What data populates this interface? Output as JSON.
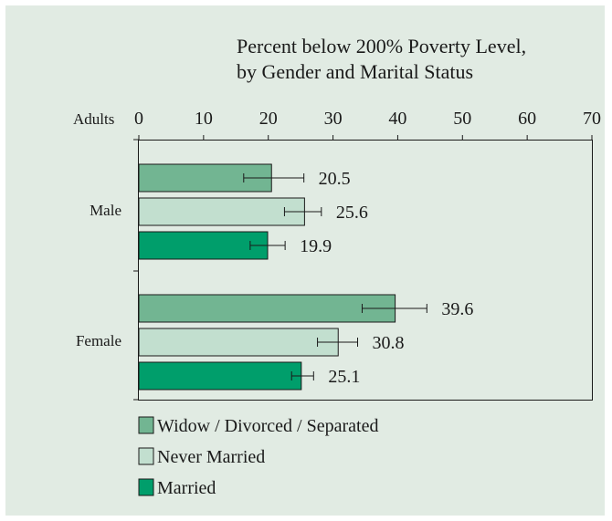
{
  "chart_data": {
    "type": "bar",
    "orientation": "horizontal",
    "title_lines": [
      "Percent below 200% Poverty Level,",
      "by Gender and Marital Status"
    ],
    "axis_prefix": "Adults",
    "xlim": [
      0,
      70
    ],
    "xticks": [
      0,
      10,
      20,
      30,
      40,
      50,
      60,
      70
    ],
    "categories": [
      "Male",
      "Female"
    ],
    "series": [
      {
        "name": "Widow / Divorced / Separated",
        "color": "#72b592",
        "values": [
          20.5,
          39.6
        ],
        "value_labels": [
          "20.5",
          "39.6"
        ],
        "err_low": [
          16.2,
          34.5
        ],
        "err_high": [
          25.5,
          44.5
        ]
      },
      {
        "name": "Never Married",
        "color": "#c2dfcf",
        "values": [
          25.6,
          30.8
        ],
        "value_labels": [
          "25.6",
          "30.8"
        ],
        "err_low": [
          22.5,
          27.6
        ],
        "err_high": [
          28.2,
          33.8
        ]
      },
      {
        "name": "Married",
        "color": "#009e6b",
        "values": [
          19.9,
          25.1
        ],
        "value_labels": [
          "19.9",
          "25.1"
        ],
        "err_low": [
          17.2,
          23.6
        ],
        "err_high": [
          22.6,
          27.0
        ]
      }
    ],
    "legend_position": "bottom-left",
    "grid": false
  }
}
